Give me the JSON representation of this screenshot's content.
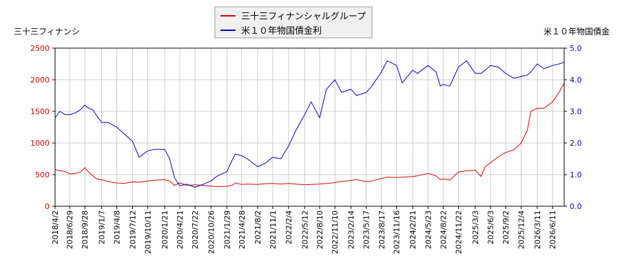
{
  "chart_data": {
    "type": "line",
    "legend_position": "top-center",
    "grid": true,
    "left_axis": {
      "label": "三十三フィナンシ",
      "range": [
        0,
        2500
      ],
      "ticks": [
        0,
        500,
        1000,
        1500,
        2000,
        2500
      ],
      "tick_labels": [
        "0",
        "500",
        "1000",
        "1500",
        "2000",
        "2500"
      ]
    },
    "right_axis": {
      "label": "米１０年物国債金",
      "range": [
        0.0,
        5.0
      ],
      "ticks": [
        0.0,
        1.0,
        2.0,
        3.0,
        4.0,
        5.0
      ],
      "tick_labels": [
        "0.0",
        "1.0",
        "2.0",
        "3.0",
        "4.0",
        "5.0"
      ]
    },
    "x_axis": {
      "range": [
        "2018-04-02",
        "2026-08-20"
      ],
      "tick_labels": [
        "2018/4/2",
        "2018/6/29",
        "2018/9/28",
        "2019/1/7",
        "2019/4/8",
        "2019/7/12",
        "2019/10/11",
        "2020/1/21",
        "2020/4/21",
        "2020/7/22",
        "2020/10/26",
        "2021/1/29",
        "2021/4/28",
        "2021/8/2",
        "2021/11/1",
        "2022/2/4",
        "2022/5/12",
        "2022/8/10",
        "2022/11/10",
        "2023/2/14",
        "2023/5/17",
        "2023/8/17",
        "2023/11/16",
        "2024/2/21",
        "2024/5/23",
        "2024/8/22",
        "2024/11/22",
        "2025/3/3",
        "2025/6/3",
        "2025/9/2",
        "2025/12/4",
        "2026/3/11",
        "2026/6/11"
      ],
      "tick_dates": [
        "2018-04-02",
        "2018-06-29",
        "2018-09-28",
        "2019-01-07",
        "2019-04-08",
        "2019-07-12",
        "2019-10-11",
        "2020-01-21",
        "2020-04-21",
        "2020-07-22",
        "2020-10-26",
        "2021-01-29",
        "2021-04-28",
        "2021-08-02",
        "2021-11-01",
        "2022-02-04",
        "2022-05-12",
        "2022-08-10",
        "2022-11-10",
        "2023-02-14",
        "2023-05-17",
        "2023-08-17",
        "2023-11-16",
        "2024-02-21",
        "2024-05-23",
        "2024-08-22",
        "2024-11-22",
        "2025-03-03",
        "2025-06-03",
        "2025-09-02",
        "2025-12-04",
        "2026-03-11",
        "2026-06-11"
      ]
    },
    "series": [
      {
        "name": "三十三フィナンシャルグループ",
        "color": "#e00000",
        "axis": "left",
        "x": [
          "2018-04-02",
          "2018-05-01",
          "2018-06-01",
          "2018-07-01",
          "2018-08-01",
          "2018-09-01",
          "2018-09-28",
          "2018-10-20",
          "2018-11-15",
          "2018-12-10",
          "2019-01-07",
          "2019-02-15",
          "2019-04-08",
          "2019-05-20",
          "2019-07-12",
          "2019-08-20",
          "2019-10-11",
          "2019-11-20",
          "2020-01-21",
          "2020-02-20",
          "2020-03-20",
          "2020-04-21",
          "2020-06-01",
          "2020-07-22",
          "2020-09-10",
          "2020-10-26",
          "2020-12-01",
          "2021-01-29",
          "2021-03-01",
          "2021-03-20",
          "2021-04-28",
          "2021-06-01",
          "2021-08-02",
          "2021-09-15",
          "2021-11-01",
          "2021-12-20",
          "2022-02-04",
          "2022-03-20",
          "2022-05-12",
          "2022-06-20",
          "2022-08-10",
          "2022-09-20",
          "2022-11-10",
          "2022-12-20",
          "2023-02-14",
          "2023-03-20",
          "2023-05-17",
          "2023-06-20",
          "2023-08-17",
          "2023-09-20",
          "2023-11-16",
          "2023-12-20",
          "2024-02-21",
          "2024-03-20",
          "2024-05-23",
          "2024-07-10",
          "2024-08-05",
          "2024-08-22",
          "2024-10-01",
          "2024-11-22",
          "2025-01-10",
          "2025-03-03",
          "2025-04-07",
          "2025-05-01",
          "2025-06-03",
          "2025-07-20",
          "2025-09-02",
          "2025-10-20",
          "2025-12-04",
          "2026-01-10",
          "2026-02-01",
          "2026-03-11",
          "2026-04-20",
          "2026-06-11",
          "2026-07-20",
          "2026-08-20"
        ],
        "values": [
          580,
          560,
          550,
          510,
          520,
          540,
          610,
          540,
          480,
          430,
          420,
          390,
          370,
          360,
          385,
          380,
          400,
          410,
          420,
          400,
          330,
          370,
          330,
          340,
          330,
          320,
          310,
          315,
          330,
          370,
          345,
          350,
          345,
          355,
          360,
          350,
          360,
          350,
          340,
          345,
          350,
          360,
          375,
          390,
          410,
          420,
          390,
          400,
          440,
          460,
          455,
          460,
          470,
          480,
          520,
          480,
          420,
          430,
          415,
          540,
          560,
          570,
          470,
          620,
          690,
          780,
          850,
          890,
          1000,
          1200,
          1500,
          1550,
          1550,
          1650,
          1800,
          1950
        ]
      },
      {
        "name": "米１０年物国債金利",
        "color": "#0000cc",
        "axis": "right",
        "x": [
          "2018-04-02",
          "2018-05-01",
          "2018-06-01",
          "2018-07-01",
          "2018-08-01",
          "2018-09-01",
          "2018-09-28",
          "2018-10-20",
          "2018-11-15",
          "2018-12-10",
          "2019-01-07",
          "2019-02-15",
          "2019-04-08",
          "2019-05-20",
          "2019-07-12",
          "2019-08-20",
          "2019-10-11",
          "2019-11-20",
          "2020-01-21",
          "2020-02-20",
          "2020-03-20",
          "2020-04-21",
          "2020-06-01",
          "2020-07-22",
          "2020-09-10",
          "2020-10-26",
          "2020-12-01",
          "2021-01-29",
          "2021-03-01",
          "2021-03-20",
          "2021-04-28",
          "2021-06-01",
          "2021-08-02",
          "2021-09-15",
          "2021-11-01",
          "2021-12-20",
          "2022-02-04",
          "2022-03-20",
          "2022-05-12",
          "2022-06-20",
          "2022-08-10",
          "2022-09-20",
          "2022-11-10",
          "2022-12-20",
          "2023-02-14",
          "2023-03-20",
          "2023-05-17",
          "2023-06-20",
          "2023-08-17",
          "2023-09-20",
          "2023-11-16",
          "2023-12-20",
          "2024-02-21",
          "2024-03-20",
          "2024-05-23",
          "2024-07-10",
          "2024-08-05",
          "2024-08-22",
          "2024-10-01",
          "2024-11-22",
          "2025-01-10",
          "2025-03-03",
          "2025-04-07",
          "2025-05-01",
          "2025-06-03",
          "2025-07-20",
          "2025-09-02",
          "2025-10-20",
          "2025-12-04",
          "2026-01-10",
          "2026-02-01",
          "2026-03-11",
          "2026-04-20",
          "2026-06-11",
          "2026-07-20",
          "2026-08-20"
        ],
        "values": [
          2.8,
          3.0,
          2.9,
          2.9,
          2.95,
          3.05,
          3.2,
          3.1,
          3.05,
          2.85,
          2.65,
          2.65,
          2.5,
          2.3,
          2.05,
          1.55,
          1.75,
          1.8,
          1.8,
          1.5,
          0.9,
          0.65,
          0.7,
          0.6,
          0.7,
          0.8,
          0.95,
          1.1,
          1.45,
          1.65,
          1.6,
          1.5,
          1.25,
          1.35,
          1.55,
          1.5,
          1.9,
          2.4,
          2.9,
          3.3,
          2.8,
          3.7,
          4.0,
          3.6,
          3.7,
          3.5,
          3.6,
          3.8,
          4.25,
          4.6,
          4.45,
          3.9,
          4.3,
          4.2,
          4.45,
          4.25,
          3.8,
          3.85,
          3.8,
          4.4,
          4.6,
          4.2,
          4.2,
          4.3,
          4.45,
          4.4,
          4.2,
          4.05,
          4.1,
          4.15,
          4.25,
          4.5,
          4.35,
          4.45,
          4.5,
          4.55
        ]
      }
    ]
  }
}
